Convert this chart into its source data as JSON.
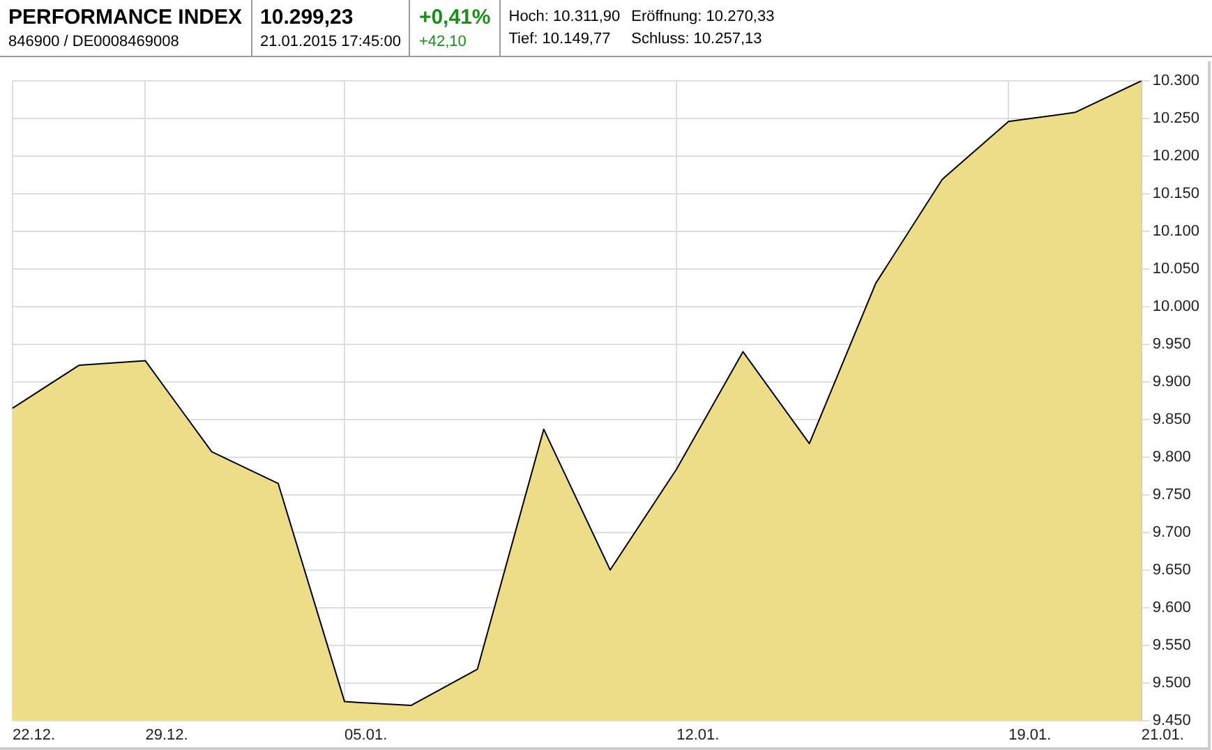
{
  "chart_data": {
    "type": "area",
    "title": "PERFORMANCE INDEX",
    "annotations": [
      "10.299,23",
      "846900 / DE0008469008",
      "21.01.2015 17:45:00",
      "+0,41%",
      "+42,10",
      "Hoch: 10.311,90",
      "Tief: 10.149,77",
      "Eröffnung: 10.270,33",
      "Schluss: 10.257,13"
    ],
    "categories": [
      "22.12.",
      null,
      "29.12.",
      null,
      null,
      "05.01.",
      null,
      null,
      null,
      null,
      "12.01.",
      null,
      null,
      null,
      null,
      "19.01.",
      null,
      "21.01."
    ],
    "series": [
      {
        "color": "#eedd88",
        "values": [
          9865,
          9922,
          9928,
          9807,
          9765,
          9475,
          9470,
          9518,
          9837,
          9650,
          9784,
          9940,
          9818,
          10031,
          10169,
          10246,
          10258,
          10300
        ]
      }
    ],
    "ylim": [
      9450,
      10300
    ],
    "yticks": [
      {
        "value": 9450,
        "label": "9.450"
      },
      {
        "value": 9500,
        "label": "9.500"
      },
      {
        "value": 9550,
        "label": "9.550"
      },
      {
        "value": 9600,
        "label": "9.600"
      },
      {
        "value": 9650,
        "label": "9.650"
      },
      {
        "value": 9700,
        "label": "9.700"
      },
      {
        "value": 9750,
        "label": "9.750"
      },
      {
        "value": 9800,
        "label": "9.800"
      },
      {
        "value": 9850,
        "label": "9.850"
      },
      {
        "value": 9900,
        "label": "9.900"
      },
      {
        "value": 9950,
        "label": "9.950"
      },
      {
        "value": 10000,
        "label": "10.000"
      },
      {
        "value": 10050,
        "label": "10.050"
      },
      {
        "value": 10100,
        "label": "10.100"
      },
      {
        "value": 10150,
        "label": "10.150"
      },
      {
        "value": 10200,
        "label": "10.200"
      },
      {
        "value": 10250,
        "label": "10.250"
      },
      {
        "value": 10300,
        "label": "10.300"
      }
    ],
    "grid": true,
    "legend": false,
    "marker": "none",
    "line_style": "solid"
  }
}
